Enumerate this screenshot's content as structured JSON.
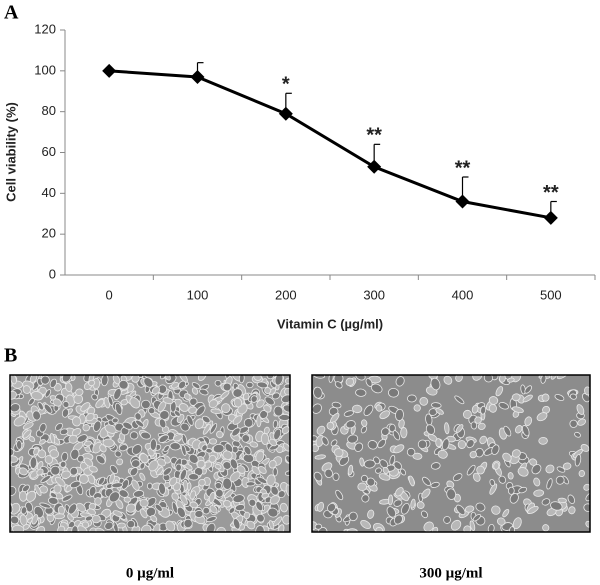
{
  "panel_a": "A",
  "panel_b": "B",
  "chart_data": {
    "type": "line",
    "x_label": "Vitamin C (µg/ml)",
    "y_label": "Cell viability (%)",
    "categories": [
      "0",
      "100",
      "200",
      "300",
      "400",
      "500"
    ],
    "values": [
      100,
      97,
      79,
      53,
      36,
      28
    ],
    "errors": [
      0,
      7,
      10,
      11,
      12,
      8
    ],
    "annotations": [
      {
        "category": "200",
        "text": "*"
      },
      {
        "category": "300",
        "text": "**"
      },
      {
        "category": "400",
        "text": "**"
      },
      {
        "category": "500",
        "text": "**"
      }
    ],
    "color": "#000000",
    "ylim": [
      0,
      120
    ],
    "yticks": [
      0,
      20,
      40,
      60,
      80,
      100,
      120
    ],
    "grid": false
  },
  "images": [
    {
      "caption": "0 µg/ml"
    },
    {
      "caption": "300 µg/ml"
    }
  ]
}
